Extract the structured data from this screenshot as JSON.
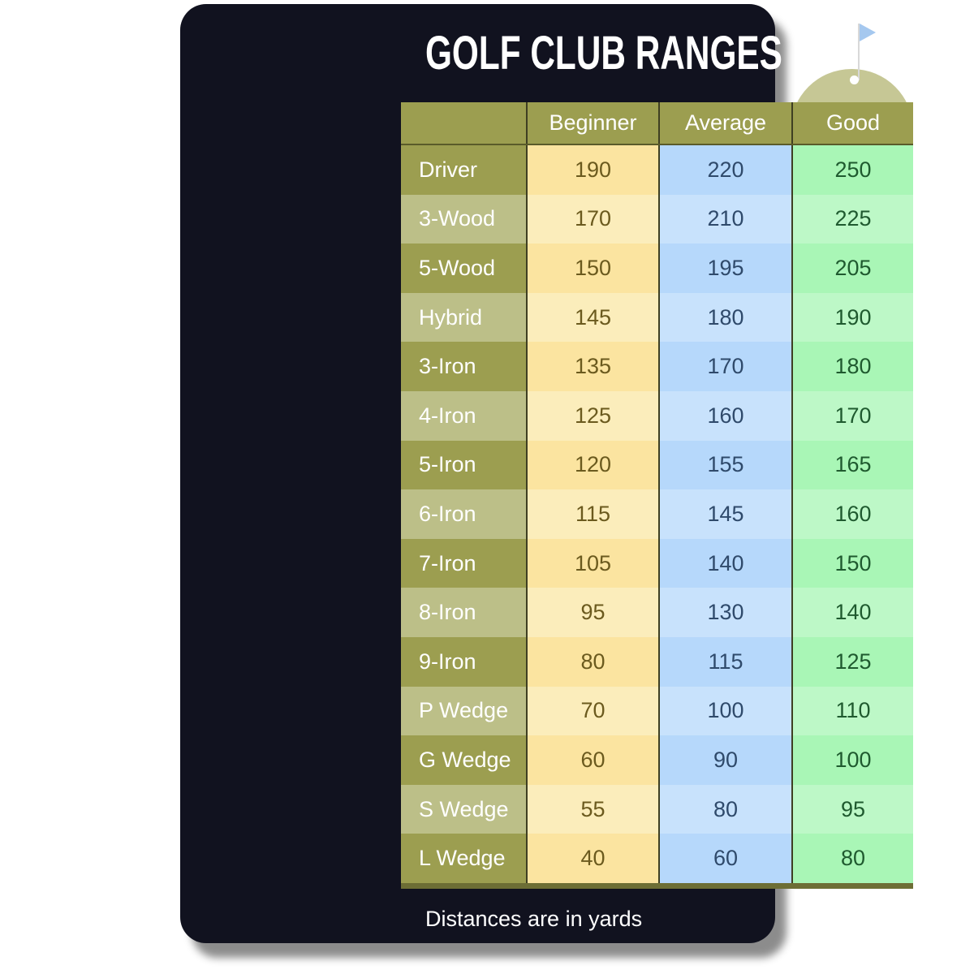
{
  "title": "GOLF CLUB RANGES",
  "headers": [
    "",
    "Beginner",
    "Average",
    "Good"
  ],
  "rows": [
    {
      "club": "Driver",
      "beginner": "190",
      "average": "220",
      "good": "250"
    },
    {
      "club": "3-Wood",
      "beginner": "170",
      "average": "210",
      "good": "225"
    },
    {
      "club": "5-Wood",
      "beginner": "150",
      "average": "195",
      "good": "205"
    },
    {
      "club": "Hybrid",
      "beginner": "145",
      "average": "180",
      "good": "190"
    },
    {
      "club": "3-Iron",
      "beginner": "135",
      "average": "170",
      "good": "180"
    },
    {
      "club": "4-Iron",
      "beginner": "125",
      "average": "160",
      "good": "170"
    },
    {
      "club": "5-Iron",
      "beginner": "120",
      "average": "155",
      "good": "165"
    },
    {
      "club": "6-Iron",
      "beginner": "115",
      "average": "145",
      "good": "160"
    },
    {
      "club": "7-Iron",
      "beginner": "105",
      "average": "140",
      "good": "150"
    },
    {
      "club": "8-Iron",
      "beginner": "95",
      "average": "130",
      "good": "140"
    },
    {
      "club": "9-Iron",
      "beginner": "80",
      "average": "115",
      "good": "125"
    },
    {
      "club": "P Wedge",
      "beginner": "70",
      "average": "100",
      "good": "110"
    },
    {
      "club": "G Wedge",
      "beginner": "60",
      "average": "90",
      "good": "100"
    },
    {
      "club": "S Wedge",
      "beginner": "55",
      "average": "80",
      "good": "95"
    },
    {
      "club": "L Wedge",
      "beginner": "40",
      "average": "60",
      "good": "80"
    }
  ],
  "footer": "Distances are in yards",
  "icons": [
    "golf-flag-icon",
    "golf-green-icon"
  ],
  "colors": {
    "background": "#11121f",
    "club": "#9c9e50",
    "beginner": "#fbe4a0",
    "average": "#b6d8fb",
    "good": "#a9f6b6",
    "flag": "#a5c8ef"
  }
}
